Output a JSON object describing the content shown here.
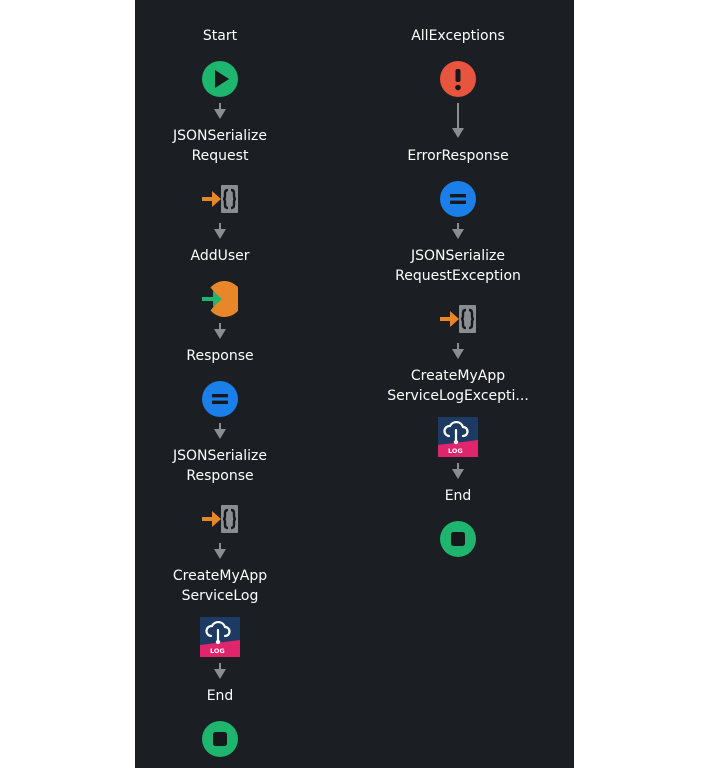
{
  "flows": [
    {
      "nodes": [
        {
          "type": "start",
          "icon": "play-icon",
          "label": [
            "Start"
          ]
        },
        {
          "type": "json",
          "icon": "json-serialize-icon",
          "label": [
            "JSONSerialize",
            "Request"
          ]
        },
        {
          "type": "action",
          "icon": "execute-action-icon",
          "label": [
            "AddUser"
          ]
        },
        {
          "type": "assign",
          "icon": "assign-icon",
          "label": [
            "Response"
          ]
        },
        {
          "type": "json",
          "icon": "json-serialize-icon",
          "label": [
            "JSONSerialize",
            "Response"
          ]
        },
        {
          "type": "log",
          "icon": "cloud-log-icon",
          "label": [
            "CreateMyApp",
            "ServiceLog"
          ]
        },
        {
          "type": "end",
          "icon": "stop-icon",
          "label": [
            "End"
          ]
        }
      ]
    },
    {
      "nodes": [
        {
          "type": "exception",
          "icon": "exclamation-icon",
          "label": [
            "AllExceptions"
          ]
        },
        {
          "type": "assign",
          "icon": "assign-icon",
          "label": [
            "ErrorResponse"
          ]
        },
        {
          "type": "json",
          "icon": "json-serialize-icon",
          "label": [
            "JSONSerialize",
            "RequestException"
          ]
        },
        {
          "type": "log",
          "icon": "cloud-log-icon",
          "label": [
            "CreateMyApp",
            "ServiceLogExcepti..."
          ]
        },
        {
          "type": "end",
          "icon": "stop-icon",
          "label": [
            "End"
          ]
        }
      ]
    }
  ],
  "log_badge_text": "LOG",
  "colors": {
    "canvas": "#1b1e22",
    "start": "#1eb56e",
    "end": "#1eb56e",
    "exception": "#e8553e",
    "assign": "#1a7fe8",
    "json_arrow": "#e8872a",
    "json_brace_bg": "#8a8d91",
    "action_pie": "#e8872a",
    "action_arrow": "#1eb56e",
    "log_bg": "#1d3a63",
    "log_band": "#e0256d",
    "connector": "#8a8d91"
  }
}
